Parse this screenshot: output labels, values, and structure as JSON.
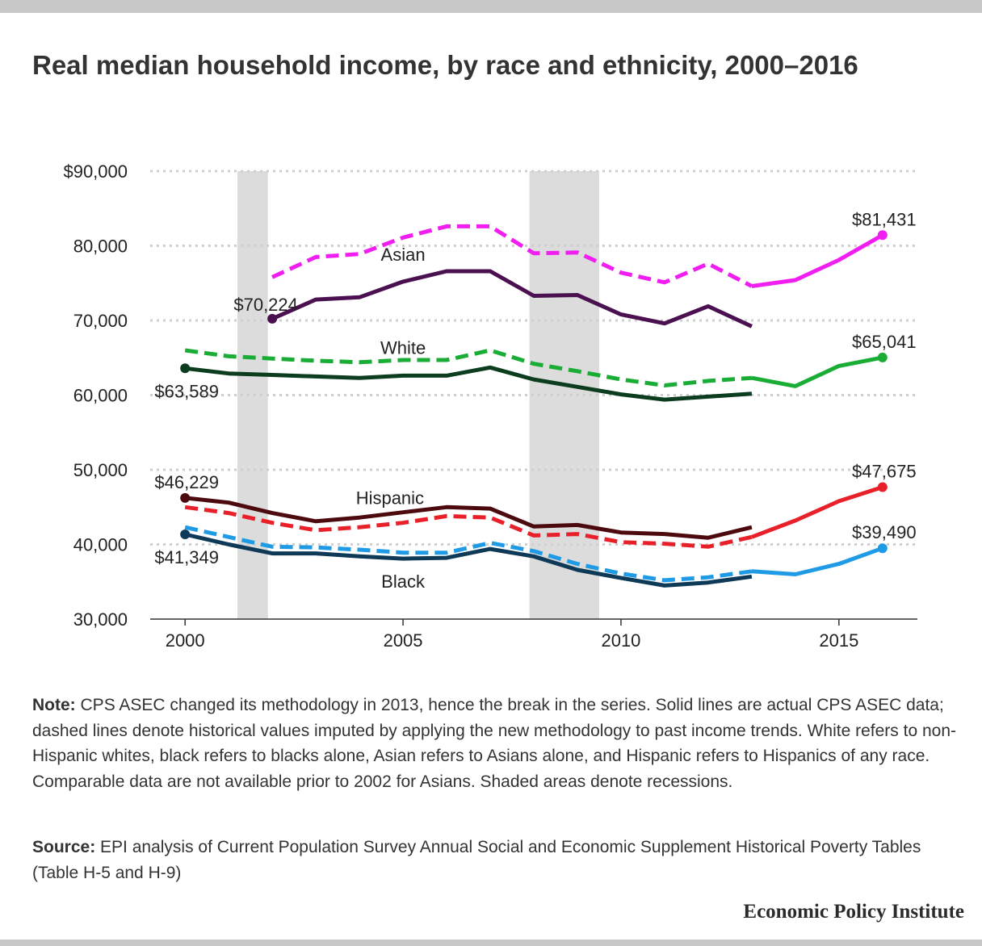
{
  "title": "Real median household income, by race and ethnicity, 2000–2016",
  "note": {
    "label": "Note:",
    "text": "CPS ASEC changed its methodology in 2013, hence the break in the series. Solid lines are actual CPS ASEC data; dashed lines denote historical values imputed by applying the new methodology to past income trends. White refers to non-Hispanic whites, black refers to blacks alone, Asian refers to Asians alone, and Hispanic refers to Hispanics of any race. Comparable data are not available prior to 2002 for Asians. Shaded areas denote recessions."
  },
  "source": {
    "label": "Source:",
    "text": "EPI analysis of Current Population Survey Annual Social and Economic Supplement Historical Poverty Tables (Table H-5 and H-9)"
  },
  "brand": "Economic Policy Institute",
  "chart_data": {
    "type": "line",
    "title": "Real median household income, by race and ethnicity, 2000–2016",
    "xlim": [
      1999.2,
      2016.8
    ],
    "ylim": [
      30000,
      90000
    ],
    "x_ticks": [
      2000,
      2005,
      2010,
      2015
    ],
    "y_ticks": [
      30000,
      40000,
      50000,
      60000,
      70000,
      80000,
      90000
    ],
    "y_tick_labels": [
      "30,000",
      "40,000",
      "50,000",
      "60,000",
      "70,000",
      "80,000",
      "$90,000"
    ],
    "grid": "horizontal dotted",
    "recessions": [
      [
        2001.2,
        2001.9
      ],
      [
        2007.9,
        2009.5
      ]
    ],
    "series": [
      {
        "name": "Asian",
        "style": "dashed",
        "color": "#f01ef0",
        "x": [
          2002,
          2003,
          2004,
          2005,
          2006,
          2007,
          2008,
          2009,
          2010,
          2011,
          2012,
          2013
        ],
        "y": [
          75800,
          78500,
          78900,
          81100,
          82600,
          82600,
          79000,
          79100,
          76400,
          75100,
          77600,
          74600
        ]
      },
      {
        "name": "Asian",
        "style": "solid",
        "color": "#f01ef0",
        "x": [
          2013,
          2014,
          2015,
          2016
        ],
        "y": [
          74600,
          75400,
          78100,
          81431
        ]
      },
      {
        "name": "Asian",
        "style": "solid",
        "color": "#4a1050",
        "x": [
          2002,
          2003,
          2004,
          2005,
          2006,
          2007,
          2008,
          2009,
          2010,
          2011,
          2012,
          2013
        ],
        "y": [
          70224,
          72800,
          73100,
          75200,
          76600,
          76600,
          73300,
          73400,
          70800,
          69600,
          71900,
          69200
        ]
      },
      {
        "name": "White",
        "style": "dashed",
        "color": "#19ad35",
        "x": [
          2000,
          2001,
          2002,
          2003,
          2004,
          2005,
          2006,
          2007,
          2008,
          2009,
          2010,
          2011,
          2012,
          2013
        ],
        "y": [
          66000,
          65200,
          64900,
          64600,
          64400,
          64700,
          64700,
          66000,
          64200,
          63200,
          62100,
          61300,
          61900,
          62300
        ]
      },
      {
        "name": "White",
        "style": "solid",
        "color": "#19ad35",
        "x": [
          2013,
          2014,
          2015,
          2016
        ],
        "y": [
          62300,
          61200,
          63900,
          65041
        ]
      },
      {
        "name": "White",
        "style": "solid",
        "color": "#0c3d1e",
        "x": [
          2000,
          2001,
          2002,
          2003,
          2004,
          2005,
          2006,
          2007,
          2008,
          2009,
          2010,
          2011,
          2012,
          2013
        ],
        "y": [
          63589,
          62900,
          62700,
          62500,
          62300,
          62600,
          62600,
          63700,
          62100,
          61100,
          60100,
          59400,
          59800,
          60200
        ]
      },
      {
        "name": "Hispanic",
        "style": "dashed",
        "color": "#e8202a",
        "x": [
          2000,
          2001,
          2002,
          2003,
          2004,
          2005,
          2006,
          2007,
          2008,
          2009,
          2010,
          2011,
          2012,
          2013
        ],
        "y": [
          45000,
          44200,
          42900,
          41900,
          42300,
          42900,
          43800,
          43600,
          41200,
          41400,
          40300,
          40100,
          39700,
          41000
        ]
      },
      {
        "name": "Hispanic",
        "style": "solid",
        "color": "#e8202a",
        "x": [
          2013,
          2014,
          2015,
          2016
        ],
        "y": [
          41000,
          43200,
          45800,
          47675
        ]
      },
      {
        "name": "Hispanic",
        "style": "solid",
        "color": "#4d0a0e",
        "x": [
          2000,
          2001,
          2002,
          2003,
          2004,
          2005,
          2006,
          2007,
          2008,
          2009,
          2010,
          2011,
          2012,
          2013
        ],
        "y": [
          46229,
          45600,
          44200,
          43100,
          43600,
          44300,
          45000,
          44800,
          42400,
          42600,
          41600,
          41400,
          40900,
          42300
        ]
      },
      {
        "name": "Black",
        "style": "dashed",
        "color": "#1f9be6",
        "x": [
          2000,
          2001,
          2002,
          2003,
          2004,
          2005,
          2006,
          2007,
          2008,
          2009,
          2010,
          2011,
          2012,
          2013
        ],
        "y": [
          42300,
          41000,
          39700,
          39600,
          39300,
          38900,
          38900,
          40200,
          39100,
          37400,
          36100,
          35200,
          35600,
          36400
        ]
      },
      {
        "name": "Black",
        "style": "solid",
        "color": "#1f9be6",
        "x": [
          2013,
          2014,
          2015,
          2016
        ],
        "y": [
          36400,
          36000,
          37400,
          39490
        ]
      },
      {
        "name": "Black",
        "style": "solid",
        "color": "#0e3a57",
        "x": [
          2000,
          2001,
          2002,
          2003,
          2004,
          2005,
          2006,
          2007,
          2008,
          2009,
          2010,
          2011,
          2012,
          2013
        ],
        "y": [
          41349,
          40000,
          38800,
          38800,
          38400,
          38100,
          38200,
          39400,
          38400,
          36600,
          35500,
          34500,
          34900,
          35700
        ]
      }
    ],
    "endpoints": [
      {
        "x": 2002,
        "y": 70224,
        "color": "#4a1050",
        "label": "$70,224"
      },
      {
        "x": 2016,
        "y": 81431,
        "color": "#f01ef0",
        "label": "$81,431"
      },
      {
        "x": 2000,
        "y": 63589,
        "color": "#0c3d1e",
        "label": "$63,589"
      },
      {
        "x": 2016,
        "y": 65041,
        "color": "#19ad35",
        "label": "$65,041"
      },
      {
        "x": 2000,
        "y": 46229,
        "color": "#4d0a0e",
        "label": "$46,229"
      },
      {
        "x": 2016,
        "y": 47675,
        "color": "#e8202a",
        "label": "$47,675"
      },
      {
        "x": 2000,
        "y": 41349,
        "color": "#0e3a57",
        "label": "$41,349"
      },
      {
        "x": 2016,
        "y": 39490,
        "color": "#1f9be6",
        "label": "$39,490"
      }
    ],
    "series_labels": [
      {
        "text": "Asian",
        "x": 2005.0,
        "y": 78000
      },
      {
        "text": "White",
        "x": 2005.0,
        "y": 65500
      },
      {
        "text": "Hispanic",
        "x": 2004.7,
        "y": 45400
      },
      {
        "text": "Black",
        "x": 2005.0,
        "y": 34200
      }
    ]
  }
}
